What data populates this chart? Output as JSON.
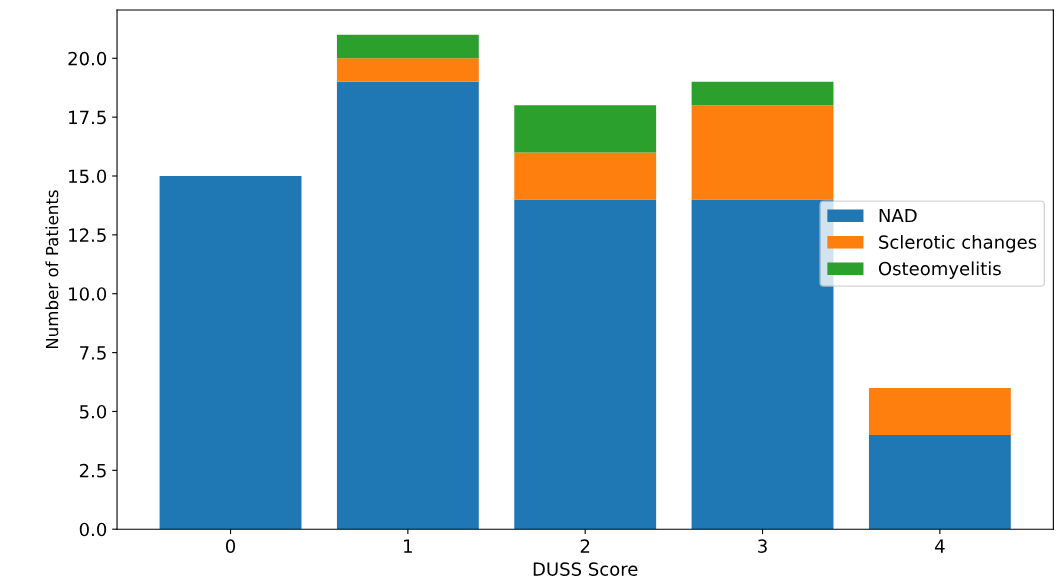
{
  "chart_data": {
    "type": "bar",
    "stacked": true,
    "xlabel": "DUSS Score",
    "ylabel": "Number of Patients",
    "categories": [
      "0",
      "1",
      "2",
      "3",
      "4"
    ],
    "series": [
      {
        "name": "NAD",
        "color": "#1f77b4",
        "values": [
          15,
          19,
          14,
          14,
          4
        ]
      },
      {
        "name": "Sclerotic changes",
        "color": "#ff7f0e",
        "values": [
          0,
          1,
          2,
          4,
          2
        ]
      },
      {
        "name": "Osteomyelitis",
        "color": "#2ca02c",
        "values": [
          0,
          1,
          2,
          1,
          0
        ]
      }
    ],
    "ylim": [
      0,
      22.05
    ],
    "yticks": [
      {
        "value": 0,
        "label": "0.0"
      },
      {
        "value": 2.5,
        "label": "2.5"
      },
      {
        "value": 5,
        "label": "5.0"
      },
      {
        "value": 7.5,
        "label": "7.5"
      },
      {
        "value": 10,
        "label": "10.0"
      },
      {
        "value": 12.5,
        "label": "12.5"
      },
      {
        "value": 15,
        "label": "15.0"
      },
      {
        "value": 17.5,
        "label": "17.5"
      },
      {
        "value": 20,
        "label": "20.0"
      }
    ],
    "legend": "center right",
    "grid": false
  }
}
